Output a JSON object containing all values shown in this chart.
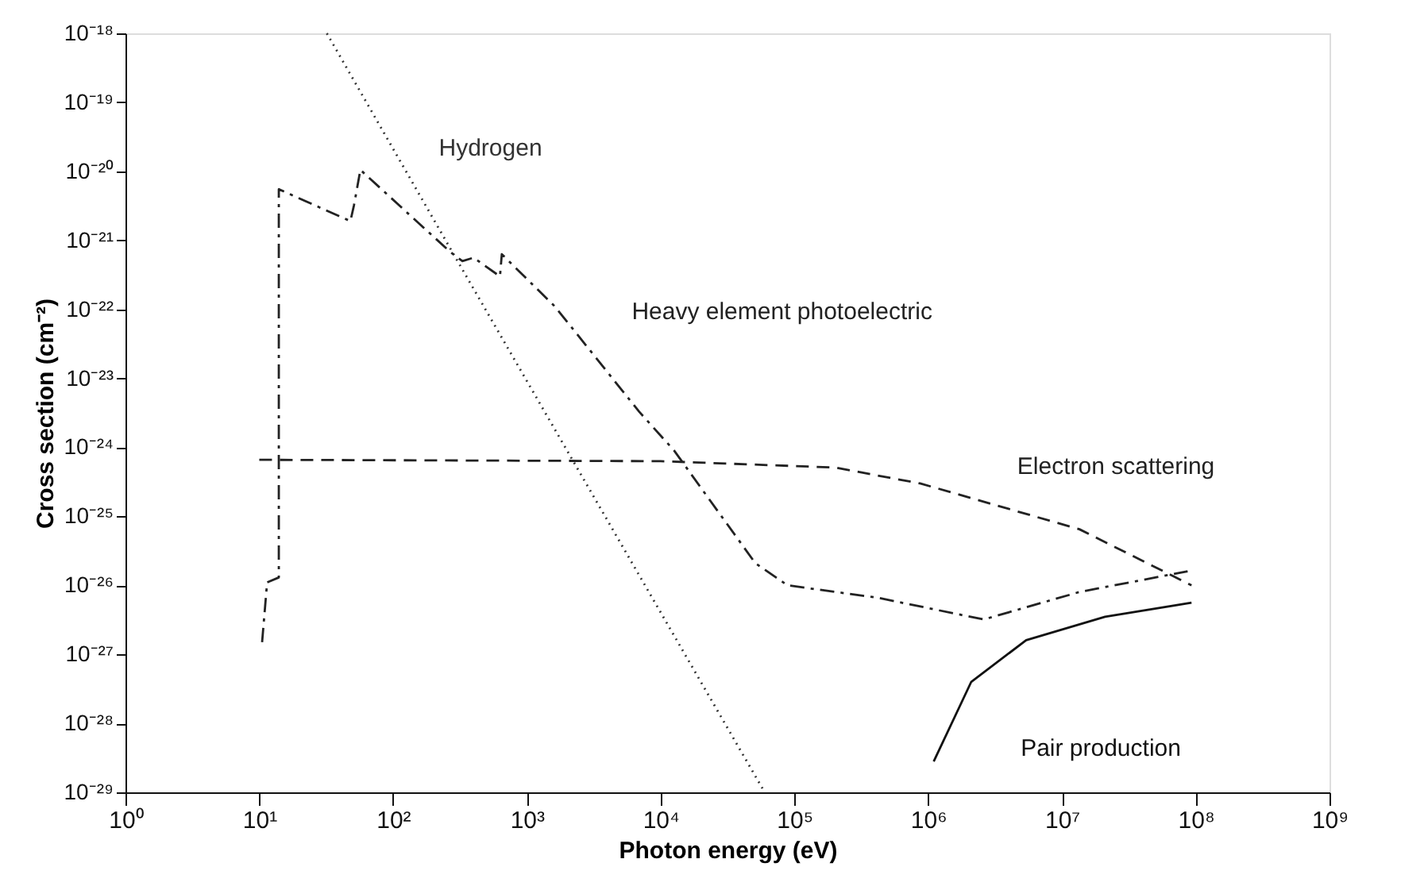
{
  "chart_data": {
    "type": "line",
    "xlabel": "Photon energy (eV)",
    "ylabel": "Cross section (cm⁻²)",
    "log": "xy",
    "grid": false,
    "marker": "none",
    "xlim": [
      1,
      1000000000
    ],
    "ylim": [
      1e-29,
      1e-18
    ],
    "xticks": [
      {
        "value": 1,
        "label": "10⁰"
      },
      {
        "value": 10,
        "label": "10¹"
      },
      {
        "value": 100,
        "label": "10²"
      },
      {
        "value": 1000,
        "label": "10³"
      },
      {
        "value": 10000,
        "label": "10⁴"
      },
      {
        "value": 100000,
        "label": "10⁵"
      },
      {
        "value": 1000000,
        "label": "10⁶"
      },
      {
        "value": 10000000,
        "label": "10⁷"
      },
      {
        "value": 100000000,
        "label": "10⁸"
      },
      {
        "value": 1000000000,
        "label": "10⁹"
      }
    ],
    "yticks": [
      {
        "value": 1e-29,
        "label": "10⁻²⁹"
      },
      {
        "value": 1e-28,
        "label": "10⁻²⁸"
      },
      {
        "value": 1e-27,
        "label": "10⁻²⁷"
      },
      {
        "value": 1e-26,
        "label": "10⁻²⁶"
      },
      {
        "value": 1e-25,
        "label": "10⁻²⁵"
      },
      {
        "value": 1e-24,
        "label": "10⁻²⁴"
      },
      {
        "value": 1e-23,
        "label": "10⁻²³"
      },
      {
        "value": 1e-22,
        "label": "10⁻²²"
      },
      {
        "value": 1e-21,
        "label": "10⁻²¹"
      },
      {
        "value": 1e-20,
        "label": "10⁻²⁰"
      },
      {
        "value": 1e-19,
        "label": "10⁻¹⁹"
      },
      {
        "value": 1e-18,
        "label": "10⁻¹⁸"
      }
    ],
    "series": [
      {
        "name": "Hydrogen",
        "color": "#333333",
        "line_style": "dotted",
        "x": [
          32,
          300,
          3000,
          60000
        ],
        "values": [
          1e-18,
          5.2e-22,
          2.3e-25,
          1e-29
        ]
      },
      {
        "name": "Heavy element photoelectric",
        "color": "#222222",
        "line_style": "dashdot",
        "x": [
          10.5,
          11.4,
          11.4,
          14,
          14,
          48,
          51,
          57,
          265,
          330,
          400,
          630,
          650,
          1620,
          6900,
          12600,
          51000,
          89000,
          420000,
          2600000,
          13500000,
          87000000
        ],
        "values": [
          1.5e-27,
          1e-26,
          1.1e-26,
          1.3e-26,
          5.5e-21,
          1.9e-21,
          3.2e-21,
          1.05e-20,
          6.9e-22,
          5e-22,
          5.6e-22,
          3e-22,
          6.3e-22,
          1.1e-22,
          3.3e-24,
          9e-25,
          2.1e-26,
          1e-26,
          6.6e-27,
          3.2e-27,
          8e-27,
          1.6e-26
        ]
      },
      {
        "name": "Electron scattering",
        "color": "#222222",
        "line_style": "dashed",
        "x": [
          10,
          10000,
          200000,
          870000,
          13500000,
          93000000
        ],
        "values": [
          6.6e-25,
          6.3e-25,
          5.1e-25,
          3e-25,
          6.5e-26,
          1e-26
        ]
      },
      {
        "name": "Pair production",
        "color": "#111111",
        "line_style": "solid",
        "x": [
          1100000,
          2100000,
          5400000,
          21000000,
          93000000
        ],
        "values": [
          2.8e-29,
          4e-28,
          1.6e-27,
          3.5e-27,
          5.6e-27
        ]
      }
    ]
  }
}
